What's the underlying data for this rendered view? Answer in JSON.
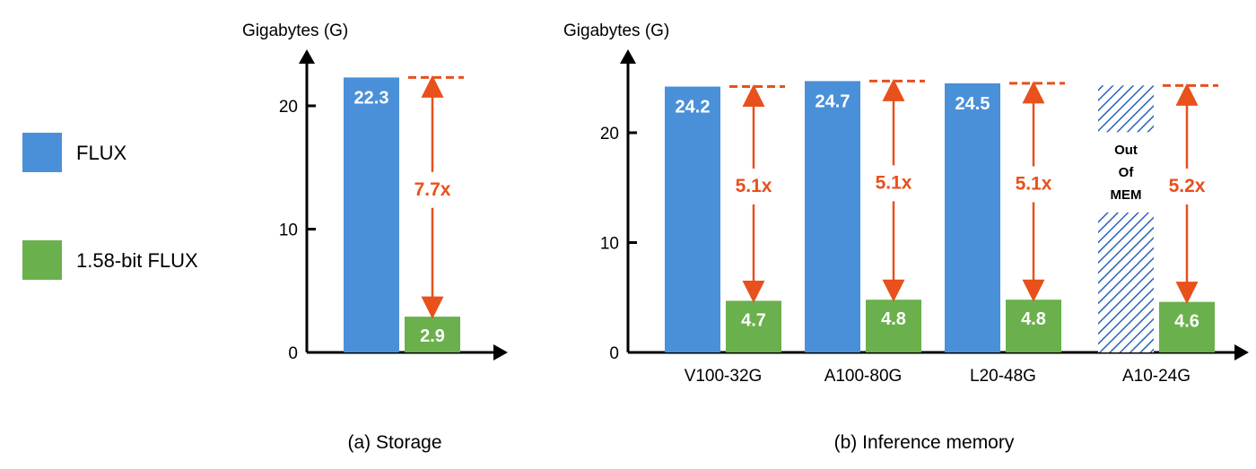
{
  "colors": {
    "flux": "#4a90d9",
    "bit": "#6ab04c",
    "ratio": "#e8501c",
    "axis": "#000000"
  },
  "legend": [
    {
      "label": "FLUX",
      "color": "#4a90d9"
    },
    {
      "label": "1.58-bit FLUX",
      "color": "#6ab04c"
    }
  ],
  "chart_data": [
    {
      "type": "bar",
      "title": "(a) Storage",
      "ylabel": "Gigabytes (G)",
      "ylim": [
        0,
        24
      ],
      "yticks": [
        "0",
        "10",
        "20"
      ],
      "categories": [
        ""
      ],
      "series": [
        {
          "name": "FLUX",
          "values": [
            22.3
          ],
          "labels": [
            "22.3"
          ]
        },
        {
          "name": "1.58-bit FLUX",
          "values": [
            2.9
          ],
          "labels": [
            "2.9"
          ]
        }
      ],
      "annotations": [
        "7.7x"
      ]
    },
    {
      "type": "bar",
      "title": "(b) Inference memory",
      "ylabel": "Gigabytes (G)",
      "ylim": [
        0,
        27
      ],
      "yticks": [
        "0",
        "10",
        "20"
      ],
      "categories": [
        "V100-32G",
        "A100-80G",
        "L20-48G",
        "A10-24G"
      ],
      "series": [
        {
          "name": "FLUX",
          "values": [
            24.2,
            24.7,
            24.5,
            null
          ],
          "labels": [
            "24.2",
            "24.7",
            "24.5",
            ""
          ]
        },
        {
          "name": "1.58-bit FLUX",
          "values": [
            4.7,
            4.8,
            4.8,
            4.6
          ],
          "labels": [
            "4.7",
            "4.8",
            "4.8",
            "4.6"
          ]
        }
      ],
      "out_of_memory": [
        "Out",
        "Of",
        "MEM"
      ],
      "annotations": [
        "5.1x",
        "5.1x",
        "5.1x",
        "5.2x"
      ]
    }
  ]
}
